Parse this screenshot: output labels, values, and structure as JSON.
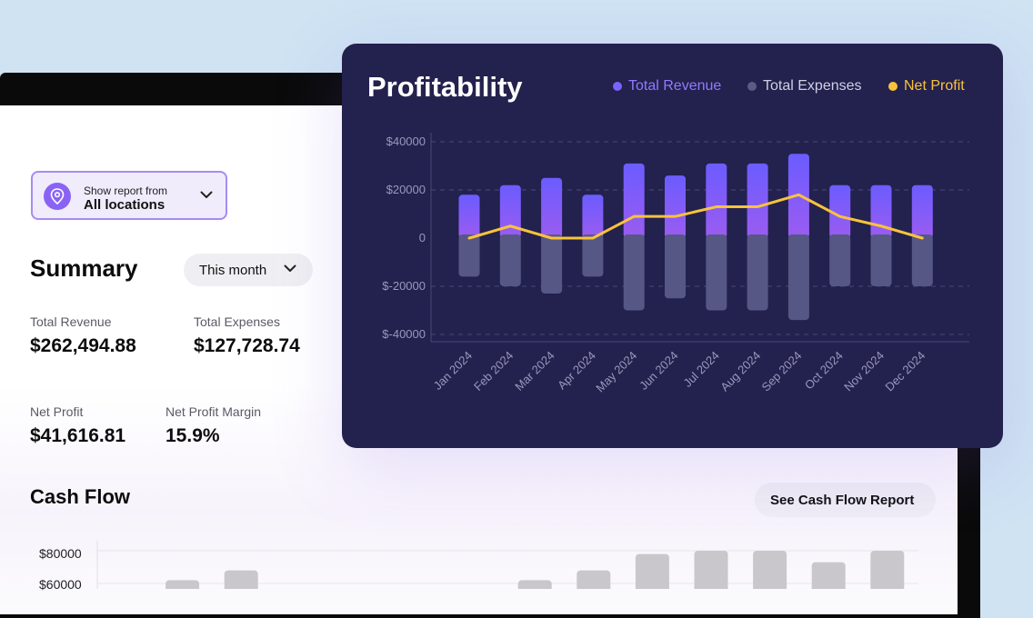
{
  "location_select": {
    "prefix": "Show report from",
    "value": "All locations"
  },
  "summary": {
    "title": "Summary",
    "period": "This month",
    "metrics": [
      {
        "label": "Total Revenue",
        "value": "$262,494.88"
      },
      {
        "label": "Total Expenses",
        "value": "$127,728.74"
      },
      {
        "label": "Net Profit",
        "value": "$41,616.81"
      },
      {
        "label": "Net Profit Margin",
        "value": "15.9%"
      }
    ]
  },
  "cash_flow": {
    "title": "Cash Flow",
    "button_label": "See Cash Flow Report",
    "y_ticks": [
      "$80000",
      "$60000"
    ],
    "bar_values": [
      null,
      62000,
      68000,
      null,
      null,
      null,
      null,
      62000,
      68000,
      78000,
      80000,
      80000,
      73000,
      80000
    ],
    "bar_color": "#c9c7cc"
  },
  "profitability": {
    "title": "Profitability",
    "legend": [
      {
        "label": "Total Revenue",
        "color": "#7b63ff",
        "text_color": "#8f7bff"
      },
      {
        "label": "Total Expenses",
        "color": "#5b5b86",
        "text_color": "#cfcfe4"
      },
      {
        "label": "Net Profit",
        "color": "#f8c33b",
        "text_color": "#f8c33b"
      }
    ]
  },
  "chart_data": {
    "type": "bar",
    "title": "Profitability",
    "categories": [
      "Jan 2024",
      "Feb 2024",
      "Mar 2024",
      "Apr 2024",
      "May 2024",
      "Jun 2024",
      "Jul 2024",
      "Aug 2024",
      "Sep 2024",
      "Oct 2024",
      "Nov 2024",
      "Dec 2024"
    ],
    "series": [
      {
        "name": "Total Revenue",
        "values": [
          18000,
          22000,
          25000,
          18000,
          31000,
          26000,
          31000,
          31000,
          35000,
          22000,
          22000,
          22000
        ]
      },
      {
        "name": "Total Expenses",
        "values": [
          -16000,
          -20000,
          -23000,
          -16000,
          -30000,
          -25000,
          -30000,
          -30000,
          -34000,
          -20000,
          -20000,
          -20000
        ]
      },
      {
        "name": "Net Profit",
        "type": "line",
        "values": [
          0,
          5000,
          0,
          0,
          9000,
          9000,
          13000,
          13000,
          18000,
          9000,
          5000,
          0
        ]
      }
    ],
    "y_ticks": [
      "$40000",
      "$20000",
      "0",
      "$-20000",
      "$-40000"
    ],
    "ylim": [
      -43000,
      40000
    ],
    "grid": true
  }
}
